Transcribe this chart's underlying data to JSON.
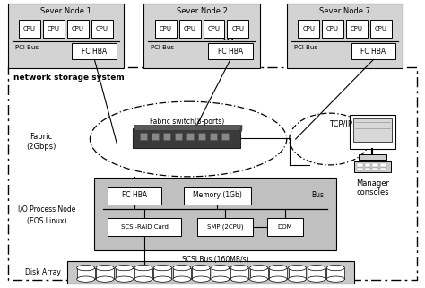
{
  "bg_color": "#ffffff",
  "light_gray": "#d3d3d3",
  "io_gray": "#c0c0c0",
  "disk_gray": "#c8c8c8",
  "text_color": "#000000",
  "server_nodes": [
    "Sever Node 1",
    "Sever Node 2",
    "Sever Node 7"
  ],
  "pci_label": "PCI Bus",
  "hba_label": "FC HBA",
  "network_label": "network storage system",
  "fabric_label": "Fabric\n(2Gbps)",
  "switch_label": "Fabric switch(8-ports)",
  "tcpip_label": "TCP/IP",
  "manager_label": "Manager\nconsoles",
  "fc_hba_label": "FC HBA",
  "memory_label": "Memory (1Gb)",
  "bus_label": "Bus",
  "scsi_raid_label": "SCSI-RAID Card",
  "smp_label": "SMP (2CPU)",
  "dom_label": "DOM",
  "scsi_bus_label": "SCSI Bus (160MB/s)",
  "disk_array_label": "Disk Array",
  "num_disks": 14
}
